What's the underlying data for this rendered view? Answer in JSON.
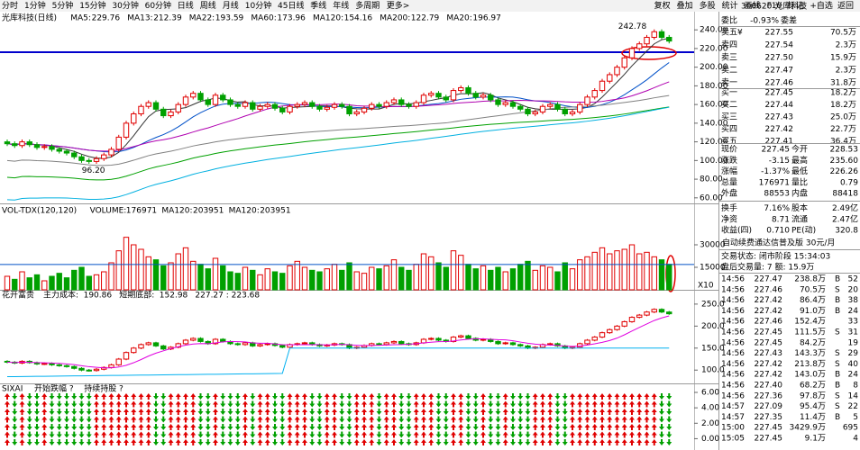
{
  "toolbar": {
    "periods": [
      "分时",
      "1分钟",
      "5分钟",
      "15分钟",
      "30分钟",
      "60分钟",
      "日线",
      "周线",
      "月线",
      "10分钟",
      "45日线",
      "季线",
      "年线",
      "多周期",
      "更多>"
    ],
    "tools": [
      "复权",
      "叠加",
      "多股",
      "统计",
      "画线",
      "F10",
      "标记",
      "+自选",
      "返回"
    ]
  },
  "chart_data": [
    {
      "type": "candlestick",
      "title": "光库科技(日线)",
      "indicators": [
        {
          "name": "MA5:",
          "value": 229.76,
          "color": "#333333"
        },
        {
          "name": "MA13:",
          "value": 212.39,
          "color": "#0050c8"
        },
        {
          "name": "MA22:",
          "value": 193.59,
          "color": "#b000b0"
        },
        {
          "name": "MA60:",
          "value": 173.96,
          "color": "#808080"
        },
        {
          "name": "MA120:",
          "value": 154.16,
          "color": "#00a000"
        },
        {
          "name": "MA200:",
          "value": 122.79,
          "color": "#00b0e0"
        },
        {
          "name": "MA20:",
          "value": 196.97,
          "color": "#333333"
        }
      ],
      "closes": [
        118,
        116,
        120,
        117,
        114,
        115,
        112,
        110,
        108,
        104,
        100,
        99,
        102,
        106,
        112,
        125,
        140,
        150,
        158,
        162,
        155,
        148,
        152,
        160,
        168,
        172,
        165,
        160,
        170,
        165,
        160,
        158,
        162,
        155,
        158,
        160,
        156,
        152,
        158,
        160,
        162,
        158,
        155,
        157,
        160,
        158,
        150,
        152,
        156,
        160,
        158,
        162,
        165,
        160,
        158,
        162,
        170,
        172,
        168,
        165,
        175,
        178,
        172,
        168,
        170,
        165,
        160,
        162,
        158,
        155,
        150,
        152,
        158,
        160,
        155,
        150,
        152,
        160,
        168,
        175,
        185,
        192,
        200,
        210,
        220,
        225,
        232,
        238,
        232,
        228
      ],
      "ylim": [
        55,
        245
      ],
      "yticks": [
        {
          "value": 60,
          "label": "60.00"
        },
        {
          "value": 80,
          "label": "80.00"
        },
        {
          "value": 100,
          "label": "100.00"
        },
        {
          "value": 120,
          "label": "120.00"
        },
        {
          "value": 140,
          "label": "140.00"
        },
        {
          "value": 160,
          "label": "160.00"
        },
        {
          "value": 180,
          "label": "180.00"
        },
        {
          "value": 200,
          "label": "200.00"
        },
        {
          "value": 220,
          "label": "220.00"
        },
        {
          "value": 240,
          "label": "240.00"
        }
      ],
      "annotations": [
        "242.78",
        "96.20"
      ]
    },
    {
      "type": "bar",
      "title": "VOL-TDX(120,120)",
      "indicators": [
        {
          "name": "VOLUME:",
          "value": 176971,
          "color": "#333333"
        },
        {
          "name": "MA120:",
          "value": 203951,
          "color": "#0050c8"
        },
        {
          "name": "MA120:",
          "value": 203951,
          "color": "#00a0e0"
        }
      ],
      "values": [
        9000,
        7000,
        12000,
        8000,
        10000,
        6000,
        9000,
        11000,
        8000,
        13000,
        15000,
        9000,
        10000,
        12000,
        18000,
        26000,
        35000,
        30000,
        27000,
        22000,
        20000,
        16000,
        18000,
        24000,
        28000,
        19000,
        17000,
        14000,
        21000,
        16000,
        12000,
        11000,
        15000,
        13000,
        10000,
        14000,
        12000,
        11000,
        16000,
        19000,
        15000,
        13000,
        12000,
        14000,
        17000,
        13000,
        18000,
        12000,
        11000,
        15000,
        14000,
        16000,
        20000,
        15000,
        13000,
        17000,
        24000,
        22000,
        18000,
        15000,
        26000,
        23000,
        17000,
        14000,
        16000,
        13000,
        15000,
        12000,
        14000,
        17000,
        19000,
        13000,
        16000,
        15000,
        12000,
        18000,
        14000,
        20000,
        22000,
        25000,
        28000,
        24000,
        26000,
        27000,
        30000,
        24000,
        25000,
        22000,
        20000,
        17000
      ],
      "ylim": [
        0,
        36000
      ],
      "yticks": [
        15000,
        30000
      ],
      "scale_label": "X10"
    },
    {
      "type": "candlestick",
      "title": "花开富贵",
      "indicators": [
        {
          "name": "主力成本:",
          "value": 190.86,
          "color": "#333333"
        },
        {
          "name": "短期底部:",
          "value": 152.98,
          "color": "#00a0e0"
        }
      ],
      "extra": "227.27 : 223.68",
      "ylim": [
        80,
        260
      ],
      "yticks": [
        {
          "value": 100,
          "label": "100.0"
        },
        {
          "value": 150,
          "label": "150.0"
        },
        {
          "value": 200,
          "label": "200.0"
        },
        {
          "value": 250,
          "label": "250.0"
        }
      ]
    },
    {
      "type": "signal",
      "title": "SIXAI",
      "indicators": [
        "开始跌幅 ?",
        "持续持股 ?"
      ],
      "ylim": [
        -1,
        6
      ],
      "yticks": [
        {
          "value": 0,
          "label": "0.00"
        },
        {
          "value": 2,
          "label": "2.00"
        },
        {
          "value": 4,
          "label": "4.00"
        },
        {
          "value": 6,
          "label": "6.00"
        }
      ]
    }
  ],
  "quote": {
    "code": "300620 光库科技",
    "ratio": [
      "委比",
      "-0.93%",
      "委差"
    ],
    "asks": [
      [
        "卖五¥",
        "227.55",
        "70.5万"
      ],
      [
        "卖四",
        "227.54",
        "2.3万"
      ],
      [
        "卖三",
        "227.50",
        "15.9万"
      ],
      [
        "卖二",
        "227.47",
        "2.3万"
      ],
      [
        "卖一",
        "227.46",
        "31.8万"
      ]
    ],
    "bids": [
      [
        "买一",
        "227.45",
        "18.2万"
      ],
      [
        "买二",
        "227.44",
        "18.2万"
      ],
      [
        "买三",
        "227.43",
        "25.0万"
      ],
      [
        "买四",
        "227.42",
        "22.7万"
      ],
      [
        "买五",
        "227.41",
        "36.4万"
      ]
    ],
    "stats": [
      {
        "cells": [
          "现价",
          "227.45",
          "今开",
          "228.53"
        ],
        "colors": [
          "#000",
          "#009900",
          "#000",
          "#009900"
        ]
      },
      {
        "cells": [
          "涨跌",
          "-3.15",
          "最高",
          "235.60"
        ],
        "colors": [
          "#000",
          "#009900",
          "#000",
          "#e00000"
        ]
      },
      {
        "cells": [
          "涨幅",
          "-1.37%",
          "最低",
          "226.26"
        ],
        "colors": [
          "#000",
          "#009900",
          "#000",
          "#009900"
        ]
      },
      {
        "cells": [
          "总量",
          "176971",
          "量比",
          "0.79"
        ],
        "colors": [
          "#000",
          "#000",
          "#000",
          "#000"
        ]
      },
      {
        "cells": [
          "外盘",
          "88553",
          "内盘",
          "88418"
        ],
        "colors": [
          "#000",
          "#e00000",
          "#000",
          "#009900"
        ]
      },
      {
        "cells": [
          "换手",
          "7.16%",
          "股本",
          "2.49亿"
        ],
        "colors": [
          "#000",
          "#000",
          "#000",
          "#000"
        ]
      },
      {
        "cells": [
          "净资",
          "8.71",
          "流通",
          "2.47亿"
        ],
        "colors": [
          "#000",
          "#000",
          "#000",
          "#000"
        ]
      },
      {
        "cells": [
          "收益(四)",
          "0.710",
          "PE(动)",
          "320.8"
        ],
        "colors": [
          "#000",
          "#000",
          "#000",
          "#000"
        ]
      }
    ],
    "banner": "自动续费通达信普及版 30元/月",
    "status": [
      "交易状态: 闭市阶段 15:34:03",
      "盘后交易量: 7 额: 15.9万"
    ],
    "trades": [
      {
        "time": "14:56",
        "price": "227.47",
        "amount": "238.8万",
        "side": "B",
        "count": "52"
      },
      {
        "time": "14:56",
        "price": "227.46",
        "amount": "70.5万",
        "side": "S",
        "count": "20"
      },
      {
        "time": "14:56",
        "price": "227.42",
        "amount": "86.4万",
        "side": "B",
        "count": "38"
      },
      {
        "time": "14:56",
        "price": "227.42",
        "amount": "91.0万",
        "side": "B",
        "count": "24"
      },
      {
        "time": "14:56",
        "price": "227.46",
        "amount": "152.4万",
        "count": "33"
      },
      {
        "time": "14:56",
        "price": "227.45",
        "amount": "111.5万",
        "side": "S",
        "count": "31"
      },
      {
        "time": "14:56",
        "price": "227.45",
        "amount": "84.2万",
        "count": "19"
      },
      {
        "time": "14:56",
        "price": "227.43",
        "amount": "143.3万",
        "side": "S",
        "count": "29"
      },
      {
        "time": "14:56",
        "price": "227.42",
        "amount": "213.8万",
        "side": "S",
        "count": "40"
      },
      {
        "time": "14:56",
        "price": "227.42",
        "amount": "143.0万",
        "side": "B",
        "count": "24"
      },
      {
        "time": "14:56",
        "price": "227.40",
        "amount": "68.2万",
        "side": "B",
        "count": "8"
      },
      {
        "time": "14:56",
        "price": "227.36",
        "amount": "97.8万",
        "side": "S",
        "count": "14"
      },
      {
        "time": "14:57",
        "price": "227.09",
        "amount": "95.4万",
        "side": "S",
        "count": "22"
      },
      {
        "time": "14:57",
        "price": "227.35",
        "amount": "11.4万",
        "side": "B",
        "count": "5"
      },
      {
        "time": "15:00",
        "price": "227.45",
        "amount": "3429.9万",
        "count": "695"
      },
      {
        "time": "15:05",
        "price": "227.45",
        "amount": "9.1万",
        "count": "4"
      }
    ]
  }
}
